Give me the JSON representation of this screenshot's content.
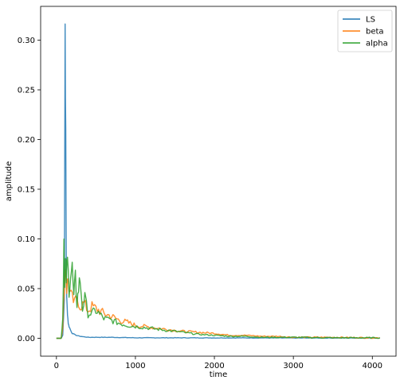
{
  "chart_data": {
    "type": "line",
    "title": "",
    "xlabel": "time",
    "ylabel": "amplitude",
    "xlim": [
      -200,
      4300
    ],
    "ylim": [
      -0.018,
      0.334
    ],
    "xticks": [
      0,
      1000,
      2000,
      3000,
      4000
    ],
    "xtick_labels": [
      "0",
      "1000",
      "2000",
      "3000",
      "4000"
    ],
    "yticks": [
      0.0,
      0.05,
      0.1,
      0.15,
      0.2,
      0.25,
      0.3
    ],
    "ytick_labels": [
      "0.00",
      "0.05",
      "0.10",
      "0.15",
      "0.20",
      "0.25",
      "0.30"
    ],
    "legend_position": "top-right",
    "grid": false,
    "series": [
      {
        "name": "LS",
        "color": "#1f77b4",
        "x": [
          0,
          60,
          80,
          100,
          110,
          118,
          125,
          130,
          140,
          150,
          160,
          180,
          200,
          250,
          300,
          400,
          500,
          700,
          1000,
          1500,
          2000,
          2500,
          3000,
          3500,
          4000,
          4096
        ],
        "y": [
          0.0,
          0.0,
          0.003,
          0.04,
          0.316,
          0.2,
          0.07,
          0.04,
          0.025,
          0.015,
          0.012,
          0.008,
          0.005,
          0.003,
          0.002,
          0.001,
          0.001,
          0.001,
          0.0005,
          0.0005,
          0.0004,
          0.0004,
          0.0003,
          0.0003,
          0.0003,
          0.0003
        ]
      },
      {
        "name": "beta",
        "color": "#ff7f0e",
        "x": [
          0,
          60,
          80,
          100,
          115,
          130,
          150,
          170,
          200,
          230,
          260,
          300,
          350,
          400,
          450,
          500,
          600,
          700,
          800,
          900,
          1000,
          1200,
          1400,
          1600,
          1800,
          2000,
          2200,
          2400,
          2600,
          2800,
          3000,
          3500,
          4000,
          4096
        ],
        "y": [
          0.0,
          0.0,
          0.01,
          0.055,
          0.075,
          0.05,
          0.06,
          0.045,
          0.04,
          0.035,
          0.042,
          0.032,
          0.035,
          0.028,
          0.032,
          0.03,
          0.025,
          0.022,
          0.018,
          0.016,
          0.013,
          0.011,
          0.009,
          0.007,
          0.006,
          0.005,
          0.003,
          0.003,
          0.002,
          0.002,
          0.001,
          0.001,
          0.0005,
          0.0005
        ]
      },
      {
        "name": "alpha",
        "color": "#2ca02c",
        "x": [
          0,
          60,
          80,
          95,
          105,
          115,
          125,
          140,
          160,
          180,
          200,
          220,
          240,
          260,
          280,
          300,
          330,
          360,
          400,
          450,
          500,
          600,
          700,
          800,
          900,
          1000,
          1200,
          1400,
          1600,
          1800,
          2000,
          2200,
          2400,
          2600,
          2800,
          3000,
          3500,
          4000,
          4096
        ],
        "y": [
          0.0,
          0.0,
          0.02,
          0.1,
          0.05,
          0.075,
          0.06,
          0.077,
          0.05,
          0.065,
          0.07,
          0.04,
          0.06,
          0.035,
          0.05,
          0.06,
          0.03,
          0.04,
          0.025,
          0.025,
          0.028,
          0.02,
          0.018,
          0.015,
          0.013,
          0.012,
          0.01,
          0.008,
          0.006,
          0.004,
          0.003,
          0.002,
          0.002,
          0.001,
          0.001,
          0.001,
          0.0005,
          0.0005,
          0.0005
        ]
      }
    ]
  }
}
